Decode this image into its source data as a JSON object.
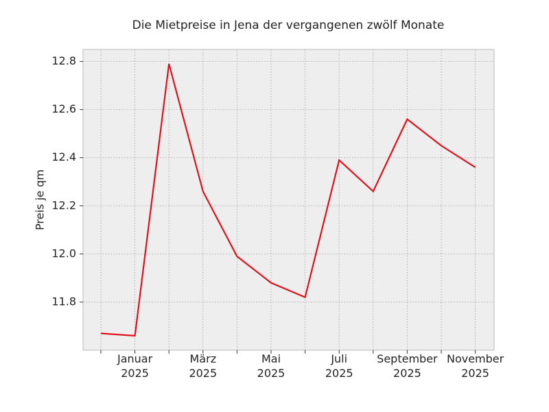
{
  "chart_data": {
    "type": "line",
    "title": "Die Mietpreise in Jena der vergangenen zwölf Monate",
    "ylabel": "Preis je qm",
    "categories": [
      null,
      "Januar\n2025",
      null,
      "März\n2025",
      null,
      "Mai\n2025",
      null,
      "Juli\n2025",
      null,
      "September\n2025",
      null,
      "November\n2025"
    ],
    "values": [
      11.67,
      11.66,
      12.79,
      12.26,
      11.99,
      11.88,
      11.82,
      12.39,
      12.26,
      12.56,
      12.45,
      12.36
    ],
    "color": "#e0101a",
    "ylim": [
      11.6,
      12.85
    ],
    "yticks": [
      11.8,
      {
        "value": 12,
        "label": "12.0"
      },
      12.2,
      12.4,
      12.6,
      12.8
    ],
    "grid": true
  }
}
